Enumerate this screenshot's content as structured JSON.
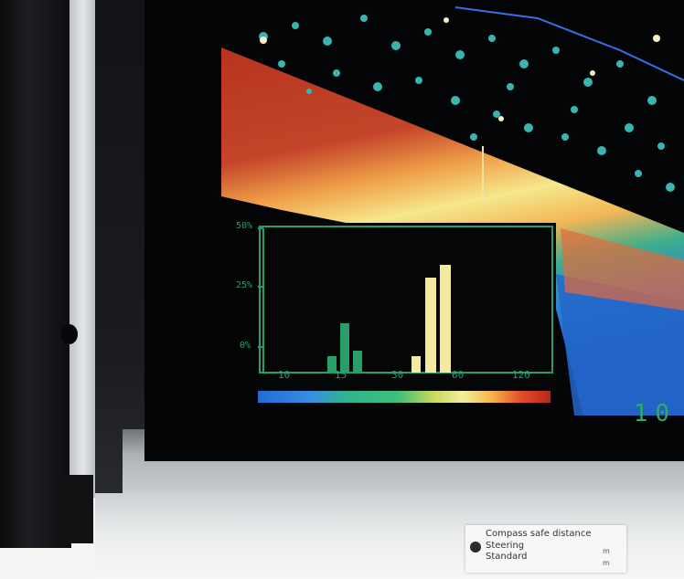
{
  "photo": {
    "subject": "echo sounder display",
    "colors": {
      "water_background": "#030405",
      "seabed_red": "#b7341f",
      "seabed_yellow": "#f5e88c",
      "seabed_blue": "#1f6cd6",
      "fish_echo_cyan": "#38b5b0",
      "histogram_green": "#2a9e6a",
      "histogram_yellow_bars": "#f5eaa2"
    }
  },
  "screen": {
    "readout": "10"
  },
  "histogram": {
    "y_ticks": [
      "50%",
      "25%",
      "0%"
    ],
    "x_ticks": [
      "10",
      "15",
      "30",
      "60",
      "120"
    ]
  },
  "sticker": {
    "line1": "Compass safe distance",
    "line2": "Steering",
    "line3": "Standard",
    "unit1": "m",
    "unit2": "m"
  }
}
